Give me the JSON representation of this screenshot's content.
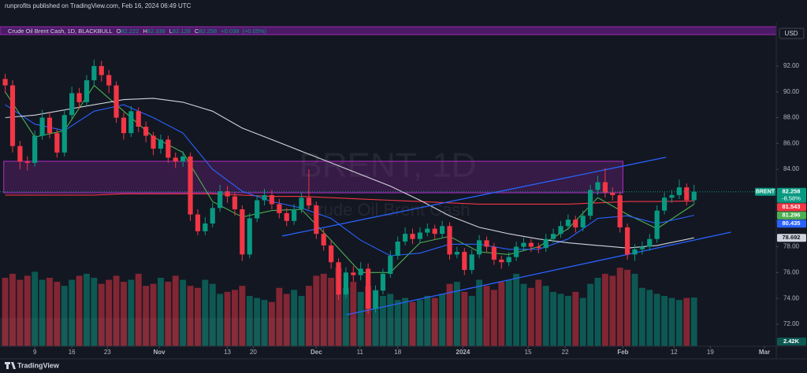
{
  "header": {
    "text": "runprofits published on TradingView.com, Feb 16, 2024 06:49 UTC"
  },
  "chart_data": {
    "type": "candlestick",
    "title": "Crude Oil Brent Cash, 1D, BLACKBULL",
    "ohlc_legend": [
      {
        "key": "O",
        "value": 82.222
      },
      {
        "key": "H",
        "value": 82.336
      },
      {
        "key": "L",
        "value": 82.128
      },
      {
        "key": "C",
        "value": 82.258
      }
    ],
    "change": "+0.038",
    "change_percent": "(+0.05%)",
    "currency": "USD",
    "watermark": [
      "BRENT, 1D",
      "Crude Oil Brent Cash"
    ],
    "symbol": "BRENT",
    "last_change": "-8.58%",
    "up_color": "#089981",
    "down_color": "#f23645",
    "open": [
      91.0,
      90.5,
      85.8,
      84.6,
      84.5,
      86.6,
      88.0,
      86.8,
      85.3,
      88.2,
      89.9,
      89.2,
      90.9,
      92.0,
      91.3,
      90.5,
      88.0,
      86.8,
      88.5,
      87.3,
      86.6,
      85.6,
      86.3,
      84.9,
      84.6,
      85.0,
      80.5,
      79.2,
      79.8,
      81.0,
      82.3,
      81.9,
      80.9,
      77.4,
      80.2,
      81.6,
      82.0,
      81.3,
      80.6,
      80.0,
      80.9,
      81.8,
      81.2,
      79.0,
      78.1,
      76.8,
      74.3,
      76.0,
      75.8,
      76.3,
      73.2,
      74.6,
      75.9,
      77.3,
      78.4,
      79.0,
      78.6,
      79.1,
      79.4,
      79.0,
      79.6,
      77.4,
      77.6,
      76.2,
      77.4,
      78.5,
      78.0,
      77.0,
      76.8,
      77.2,
      78.0,
      78.3,
      78.0,
      77.9,
      78.6,
      79.0,
      79.6,
      80.1,
      79.5,
      80.4,
      82.4,
      83.0,
      82.2,
      82.0,
      79.5,
      77.4,
      77.8,
      78.0,
      78.6,
      80.8,
      81.8,
      82.0,
      82.6,
      81.6
    ],
    "high": [
      91.4,
      90.9,
      86.2,
      85.0,
      87.0,
      88.6,
      88.4,
      87.1,
      88.6,
      90.4,
      90.3,
      91.3,
      92.5,
      92.4,
      91.7,
      90.8,
      88.4,
      88.9,
      88.8,
      87.7,
      86.9,
      86.7,
      86.6,
      85.3,
      85.4,
      85.3,
      80.9,
      80.3,
      81.4,
      82.8,
      82.7,
      82.2,
      81.2,
      80.6,
      82.0,
      82.5,
      82.4,
      81.7,
      81.0,
      81.3,
      82.2,
      84.0,
      81.5,
      79.4,
      78.5,
      77.1,
      76.4,
      76.5,
      76.8,
      76.7,
      75.0,
      76.3,
      77.7,
      78.8,
      79.5,
      79.4,
      79.5,
      79.8,
      79.7,
      80.0,
      79.9,
      78.0,
      77.9,
      77.8,
      78.9,
      78.8,
      78.3,
      77.3,
      77.6,
      78.4,
      78.7,
      78.6,
      78.3,
      79.0,
      79.4,
      80.0,
      80.5,
      80.4,
      80.8,
      82.8,
      83.5,
      84.1,
      82.6,
      82.3,
      79.8,
      78.2,
      78.4,
      79.0,
      81.2,
      82.2,
      82.4,
      83.2,
      82.9,
      82.8
    ],
    "low": [
      89.9,
      85.3,
      84.0,
      83.9,
      84.2,
      86.3,
      86.4,
      84.9,
      85.0,
      87.9,
      88.7,
      88.9,
      90.4,
      90.8,
      89.9,
      87.6,
      86.3,
      86.5,
      86.9,
      86.1,
      85.1,
      85.2,
      84.5,
      84.1,
      84.2,
      80.0,
      78.9,
      78.9,
      79.5,
      80.7,
      81.4,
      80.4,
      76.9,
      77.1,
      79.9,
      81.2,
      80.9,
      80.2,
      79.6,
      79.7,
      80.6,
      80.9,
      78.6,
      77.7,
      76.3,
      73.9,
      74.0,
      75.3,
      75.4,
      72.8,
      72.9,
      74.3,
      75.6,
      77.0,
      78.1,
      78.2,
      78.3,
      78.8,
      78.6,
      78.7,
      77.0,
      77.1,
      75.8,
      75.9,
      77.1,
      77.6,
      76.6,
      76.3,
      76.5,
      76.9,
      77.7,
      77.6,
      77.5,
      77.6,
      78.3,
      78.7,
      79.3,
      79.1,
      79.2,
      80.1,
      82.0,
      81.8,
      81.6,
      79.1,
      77.0,
      76.9,
      77.4,
      77.7,
      78.3,
      80.5,
      81.4,
      81.7,
      81.2,
      81.3
    ],
    "close": [
      90.5,
      85.8,
      84.6,
      84.5,
      86.6,
      88.0,
      86.8,
      85.3,
      88.2,
      89.9,
      89.2,
      90.9,
      92.0,
      91.3,
      90.5,
      88.0,
      86.8,
      88.5,
      87.3,
      86.6,
      85.6,
      86.3,
      84.9,
      84.6,
      85.0,
      80.5,
      79.2,
      79.8,
      81.0,
      82.3,
      81.9,
      80.9,
      77.4,
      80.2,
      81.6,
      82.0,
      81.3,
      80.6,
      80.0,
      80.9,
      81.8,
      81.2,
      79.0,
      78.1,
      76.8,
      74.3,
      76.0,
      75.8,
      76.3,
      73.2,
      74.6,
      75.9,
      77.3,
      78.4,
      79.0,
      78.6,
      79.1,
      79.4,
      79.0,
      79.6,
      77.4,
      77.6,
      76.2,
      77.4,
      78.5,
      78.0,
      77.0,
      76.8,
      77.2,
      78.0,
      78.3,
      78.0,
      77.9,
      78.6,
      79.0,
      79.6,
      80.1,
      79.5,
      80.4,
      82.4,
      83.0,
      82.2,
      82.0,
      79.5,
      77.4,
      77.8,
      78.0,
      78.6,
      80.8,
      81.8,
      82.0,
      82.6,
      81.6,
      82.258
    ],
    "volume": {
      "values": [
        3.4,
        3.6,
        3.3,
        3.5,
        3.7,
        3.3,
        3.4,
        3.2,
        3.0,
        3.3,
        3.5,
        3.6,
        3.4,
        3.1,
        3.3,
        3.5,
        3.2,
        3.3,
        3.6,
        3.0,
        3.1,
        3.4,
        3.2,
        3.5,
        3.3,
        3.0,
        2.9,
        3.3,
        3.1,
        2.6,
        2.7,
        2.8,
        3.0,
        2.5,
        2.4,
        2.3,
        2.2,
        2.9,
        2.6,
        2.8,
        2.5,
        3.0,
        3.5,
        3.6,
        3.4,
        3.9,
        2.9,
        3.2,
        2.7,
        3.0,
        2.8,
        2.5,
        2.6,
        2.3,
        2.4,
        2.2,
        2.3,
        2.5,
        2.4,
        2.6,
        3.1,
        3.2,
        2.7,
        2.5,
        3.3,
        3.0,
        2.8,
        3.2,
        3.3,
        3.6,
        3.1,
        2.9,
        3.3,
        3.0,
        2.7,
        2.6,
        2.5,
        2.7,
        2.4,
        3.1,
        3.4,
        3.6,
        3.5,
        3.9,
        3.8,
        3.6,
        2.9,
        2.8,
        2.6,
        2.5,
        2.4,
        2.3,
        2.4,
        2.42
      ],
      "last_label": "2.42K",
      "ylim": [
        0,
        16.1
      ],
      "up_color": "rgba(8,153,129,0.5)",
      "down_color": "rgba(242,54,69,0.5)"
    },
    "moving_averages": [
      {
        "color": "#f23645",
        "x": [
          0,
          4,
          8,
          12,
          16,
          20,
          24,
          28,
          32,
          36,
          40,
          44,
          48,
          52,
          56,
          60,
          64,
          68,
          72,
          76,
          80,
          84,
          88,
          93
        ],
        "values": [
          82.0,
          82.0,
          82.0,
          82.0,
          82.1,
          82.1,
          82.1,
          82.1,
          82.0,
          81.9,
          81.9,
          81.8,
          81.7,
          81.6,
          81.5,
          81.4,
          81.3,
          81.3,
          81.3,
          81.3,
          81.4,
          81.5,
          81.5,
          81.543
        ]
      },
      {
        "color": "#4caf50",
        "x": [
          0,
          4,
          8,
          12,
          16,
          20,
          24,
          28,
          32,
          36,
          40,
          44,
          48,
          52,
          56,
          60,
          64,
          68,
          72,
          76,
          80,
          84,
          88,
          93
        ],
        "values": [
          90.0,
          86.5,
          87.0,
          90.5,
          88.5,
          86.5,
          85.3,
          81.5,
          80.3,
          80.8,
          80.9,
          78.5,
          76.0,
          76.0,
          78.3,
          78.8,
          77.6,
          77.4,
          78.0,
          79.4,
          81.8,
          80.5,
          79.4,
          81.296
        ]
      },
      {
        "color": "#2962ff",
        "x": [
          0,
          4,
          8,
          12,
          16,
          20,
          24,
          28,
          32,
          36,
          40,
          44,
          48,
          52,
          56,
          60,
          64,
          68,
          72,
          76,
          80,
          84,
          88,
          93
        ],
        "values": [
          89.0,
          87.5,
          87.0,
          88.5,
          89.0,
          88.0,
          86.8,
          84.0,
          82.3,
          81.5,
          81.0,
          80.2,
          78.5,
          77.3,
          77.5,
          78.2,
          78.2,
          77.8,
          77.8,
          78.6,
          80.2,
          80.4,
          79.8,
          80.435
        ]
      },
      {
        "color": "#d1d4dc",
        "x": [
          0,
          4,
          8,
          12,
          16,
          20,
          24,
          28,
          32,
          36,
          40,
          44,
          48,
          52,
          56,
          60,
          64,
          68,
          72,
          76,
          80,
          84,
          88,
          93
        ],
        "values": [
          88.0,
          88.2,
          88.6,
          89.0,
          89.4,
          89.5,
          89.2,
          88.5,
          87.2,
          86.3,
          85.4,
          84.5,
          83.6,
          82.7,
          81.6,
          80.4,
          79.5,
          79.0,
          78.6,
          78.3,
          78.1,
          77.9,
          78.1,
          78.692
        ]
      }
    ],
    "zone": {
      "x": [
        -0.2,
        83.4
      ],
      "y": [
        82.18,
        84.62
      ],
      "color": "#9c27b0"
    },
    "trendline_color": "#2962ff",
    "trendlines": [
      {
        "x": [
          37.4,
          89.2
        ],
        "y": [
          78.83,
          84.93
        ]
      },
      {
        "x": [
          46.1,
          98.0
        ],
        "y": [
          72.73,
          79.13
        ]
      }
    ],
    "xlim": [
      -0.7,
      104.1
    ],
    "ylim": [
      70.29,
      95.41
    ],
    "yticks": [
      {
        "value": 92,
        "label": "92.00"
      },
      {
        "value": 90,
        "label": "90.00"
      },
      {
        "value": 88,
        "label": "88.00"
      },
      {
        "value": 86,
        "label": "86.00"
      },
      {
        "value": 84,
        "label": "84.00"
      },
      {
        "value": 82,
        "label": "82.00"
      },
      {
        "value": 80,
        "label": "80.00"
      },
      {
        "value": 78,
        "label": "78.00"
      },
      {
        "value": 76,
        "label": "76.00"
      },
      {
        "value": 74,
        "label": "74.00"
      },
      {
        "value": 72,
        "label": "72.00"
      }
    ],
    "xticks": [
      {
        "value": 4,
        "label": "9"
      },
      {
        "value": 9,
        "label": "16"
      },
      {
        "value": 13.8,
        "label": "23"
      },
      {
        "value": 20.8,
        "label": "Nov"
      },
      {
        "value": 30,
        "label": "13"
      },
      {
        "value": 33.5,
        "label": "20"
      },
      {
        "value": 42,
        "label": "Dec"
      },
      {
        "value": 47.9,
        "label": "11"
      },
      {
        "value": 53,
        "label": "18"
      },
      {
        "value": 61.8,
        "label": "2024"
      },
      {
        "value": 70.6,
        "label": "15"
      },
      {
        "value": 75.6,
        "label": "22"
      },
      {
        "value": 83.4,
        "label": "Feb"
      },
      {
        "value": 90.3,
        "label": "12"
      },
      {
        "value": 95.2,
        "label": "19"
      },
      {
        "value": 102.5,
        "label": "Mar"
      }
    ]
  },
  "footer": {
    "brand": "TradingView"
  }
}
